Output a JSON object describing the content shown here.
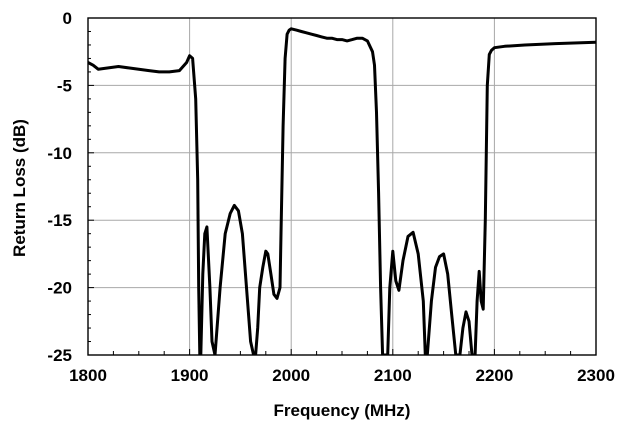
{
  "chart_data": {
    "type": "line",
    "title": "",
    "xlabel": "Frequency (MHz)",
    "ylabel": "Return Loss (dB)",
    "xlim": [
      1800,
      2300
    ],
    "ylim": [
      -25,
      0
    ],
    "xticks": [
      1800,
      1900,
      2000,
      2100,
      2200,
      2300
    ],
    "yticks": [
      0,
      -5,
      -10,
      -15,
      -20,
      -25
    ],
    "xtick_labels": [
      "1800",
      "1900",
      "2000",
      "2100",
      "2200",
      "2300"
    ],
    "ytick_labels": [
      "0",
      "-5",
      "-10",
      "-15",
      "-20",
      "-25"
    ],
    "grid": true,
    "legend": "none",
    "line_color": "#000000",
    "series": [
      {
        "x": [
          1800,
          1805,
          1810,
          1820,
          1830,
          1840,
          1850,
          1860,
          1870,
          1880,
          1890,
          1897,
          1900,
          1903,
          1906,
          1908,
          1909,
          1910,
          1911,
          1913,
          1915,
          1917,
          1918,
          1920,
          1922,
          1925,
          1930,
          1935,
          1940,
          1944,
          1948,
          1952,
          1956,
          1960,
          1963,
          1965,
          1967,
          1969,
          1972,
          1975,
          1977,
          1980,
          1983,
          1986,
          1989,
          1990,
          1992,
          1994,
          1996,
          1998,
          2000,
          2005,
          2010,
          2015,
          2020,
          2025,
          2030,
          2035,
          2040,
          2045,
          2050,
          2055,
          2060,
          2065,
          2070,
          2075,
          2080,
          2082,
          2084,
          2086,
          2088,
          2090,
          2092,
          2093,
          2094,
          2095,
          2097,
          2100,
          2103,
          2106,
          2110,
          2115,
          2120,
          2125,
          2130,
          2132,
          2134,
          2138,
          2142,
          2146,
          2150,
          2154,
          2158,
          2162,
          2164,
          2166,
          2169,
          2172,
          2175,
          2178,
          2180,
          2181,
          2183,
          2185,
          2187,
          2189,
          2191,
          2193,
          2195,
          2197,
          2200,
          2210,
          2230,
          2260,
          2300
        ],
        "y": [
          -3.3,
          -3.5,
          -3.8,
          -3.7,
          -3.6,
          -3.7,
          -3.8,
          -3.9,
          -4.0,
          -4.0,
          -3.9,
          -3.3,
          -2.8,
          -3.0,
          -6,
          -12,
          -20,
          -25,
          -25,
          -19,
          -16,
          -15.5,
          -17,
          -20,
          -24,
          -25,
          -20,
          -16,
          -14.5,
          -13.9,
          -14.3,
          -16,
          -20,
          -24,
          -25,
          -25,
          -23,
          -20,
          -18.5,
          -17.3,
          -17.5,
          -19,
          -20.5,
          -20.8,
          -20,
          -16,
          -8,
          -3,
          -1.2,
          -0.9,
          -0.8,
          -0.9,
          -1.0,
          -1.1,
          -1.2,
          -1.3,
          -1.4,
          -1.5,
          -1.5,
          -1.6,
          -1.6,
          -1.7,
          -1.6,
          -1.5,
          -1.5,
          -1.7,
          -2.5,
          -3.5,
          -7,
          -13,
          -20,
          -25,
          -25,
          -25,
          -25,
          -25,
          -20,
          -17.3,
          -19.5,
          -20.2,
          -18,
          -16.2,
          -15.9,
          -17.5,
          -21,
          -25,
          -25,
          -21,
          -18.5,
          -17.7,
          -17.5,
          -19,
          -22,
          -25,
          -25,
          -25,
          -23,
          -21.8,
          -22.5,
          -25,
          -25,
          -25,
          -21,
          -18.8,
          -21,
          -21.6,
          -15,
          -5,
          -2.7,
          -2.4,
          -2.2,
          -2.1,
          -2.0,
          -1.9,
          -1.8
        ]
      }
    ]
  }
}
